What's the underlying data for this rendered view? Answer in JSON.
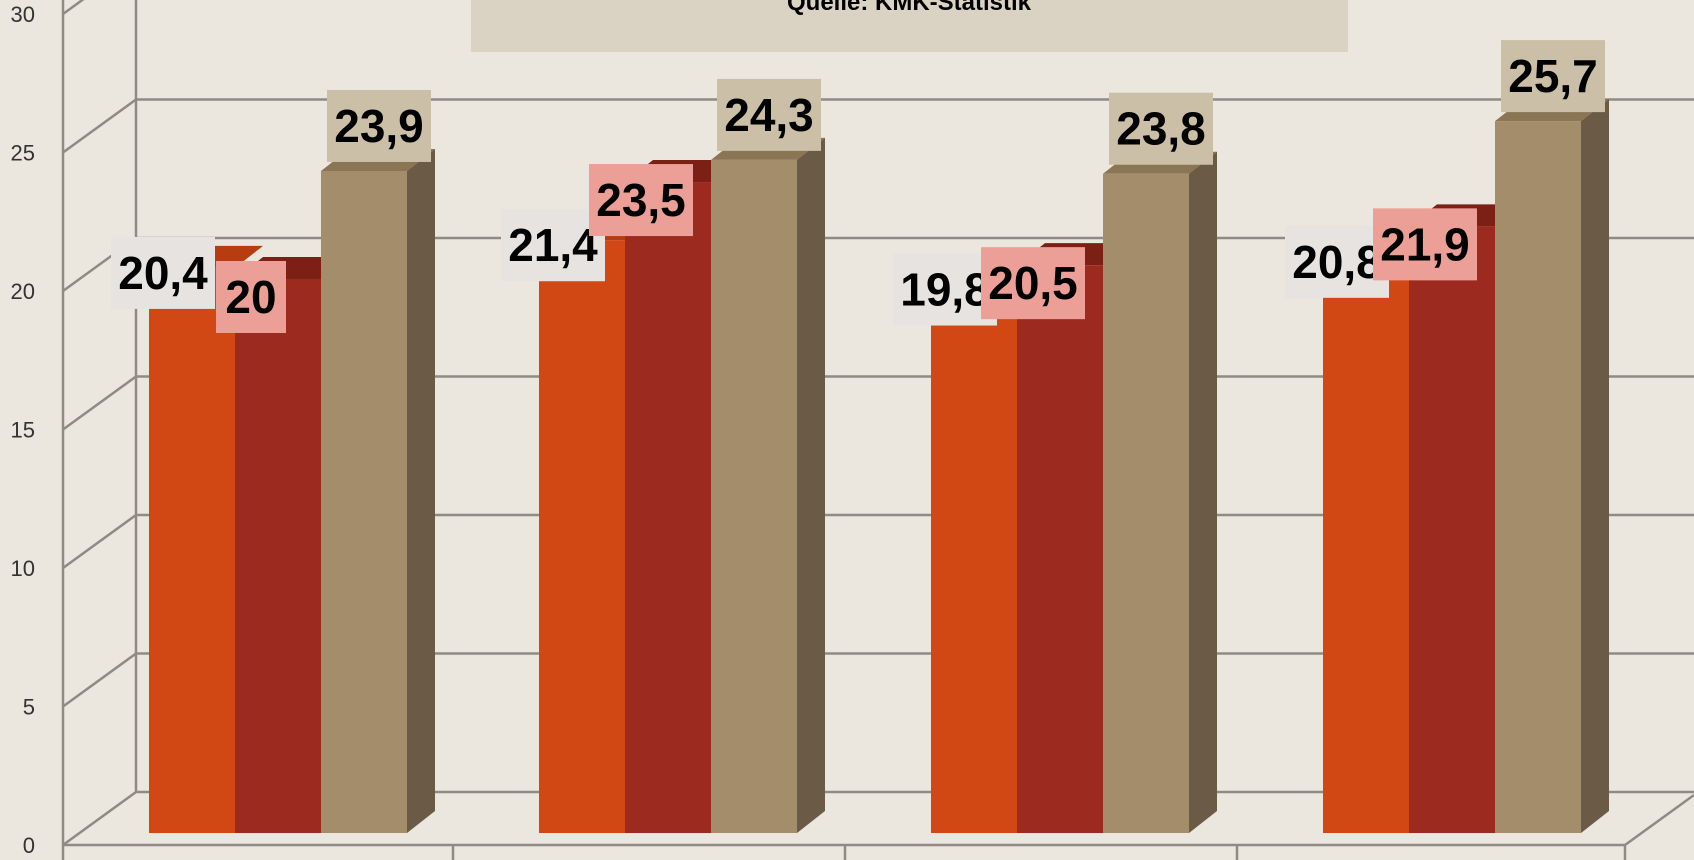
{
  "colors": {
    "background": "#ebe6de",
    "grid": "#8f8a83",
    "source_box": "#dad3c3"
  },
  "source_note": "Quelle: KMK-Statistik",
  "chart_data": {
    "type": "bar",
    "style": "3d clustered column",
    "categories": [
      "",
      "",
      "",
      ""
    ],
    "series": [
      {
        "color_front": "#d24815",
        "color_top": "#b73c10",
        "label_bg": "#e6e3e0",
        "values": [
          20.4,
          21.4,
          19.8,
          20.8
        ]
      },
      {
        "color_front": "#9d2a1e",
        "color_top": "#7c2016",
        "label_bg": "#ec9f97",
        "values": [
          20,
          23.5,
          20.5,
          21.9
        ]
      },
      {
        "color_front": "#a38d6a",
        "color_top": "#8a7554",
        "color_side": "#6b5a45",
        "label_bg": "#cbbfa7",
        "values": [
          23.9,
          24.3,
          23.8,
          25.7
        ]
      }
    ],
    "data_labels": [
      [
        "20,4",
        "21,4",
        "19,8",
        "20,8"
      ],
      [
        "20",
        "23,5",
        "20,5",
        "21,9"
      ],
      [
        "23,9",
        "24,3",
        "23,8",
        "25,7"
      ]
    ],
    "y_ticks": [
      "0",
      "5",
      "10",
      "15",
      "20",
      "25",
      "30"
    ],
    "ylim": [
      0,
      30
    ],
    "grid": true,
    "legend": "none",
    "title": "",
    "xlabel": "",
    "ylabel": ""
  }
}
